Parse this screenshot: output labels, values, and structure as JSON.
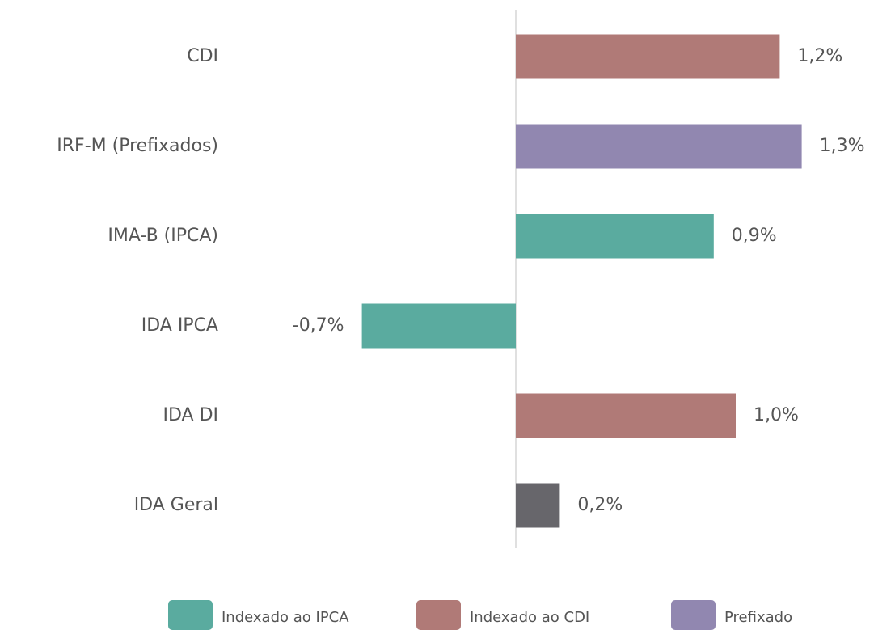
{
  "chart_data": {
    "type": "bar",
    "orientation": "horizontal",
    "categories": [
      "CDI",
      "IRF-M (Prefixados)",
      "IMA-B (IPCA)",
      "IDA IPCA",
      "IDA DI",
      "IDA Geral"
    ],
    "values": [
      1.2,
      1.3,
      0.9,
      -0.7,
      1.0,
      0.2
    ],
    "value_labels": [
      "1,2%",
      "1,3%",
      "0,9%",
      "-0,7%",
      "1,0%",
      "0,2%"
    ],
    "colors": [
      "#b07a77",
      "#9187b0",
      "#5aab9f",
      "#5aab9f",
      "#b07a77",
      "#67666b"
    ],
    "legend": [
      {
        "name": "Indexado ao IPCA",
        "color": "#5aab9f"
      },
      {
        "name": "Indexado ao CDI",
        "color": "#b07a77"
      },
      {
        "name": "Prefixado",
        "color": "#9187b0"
      }
    ]
  }
}
